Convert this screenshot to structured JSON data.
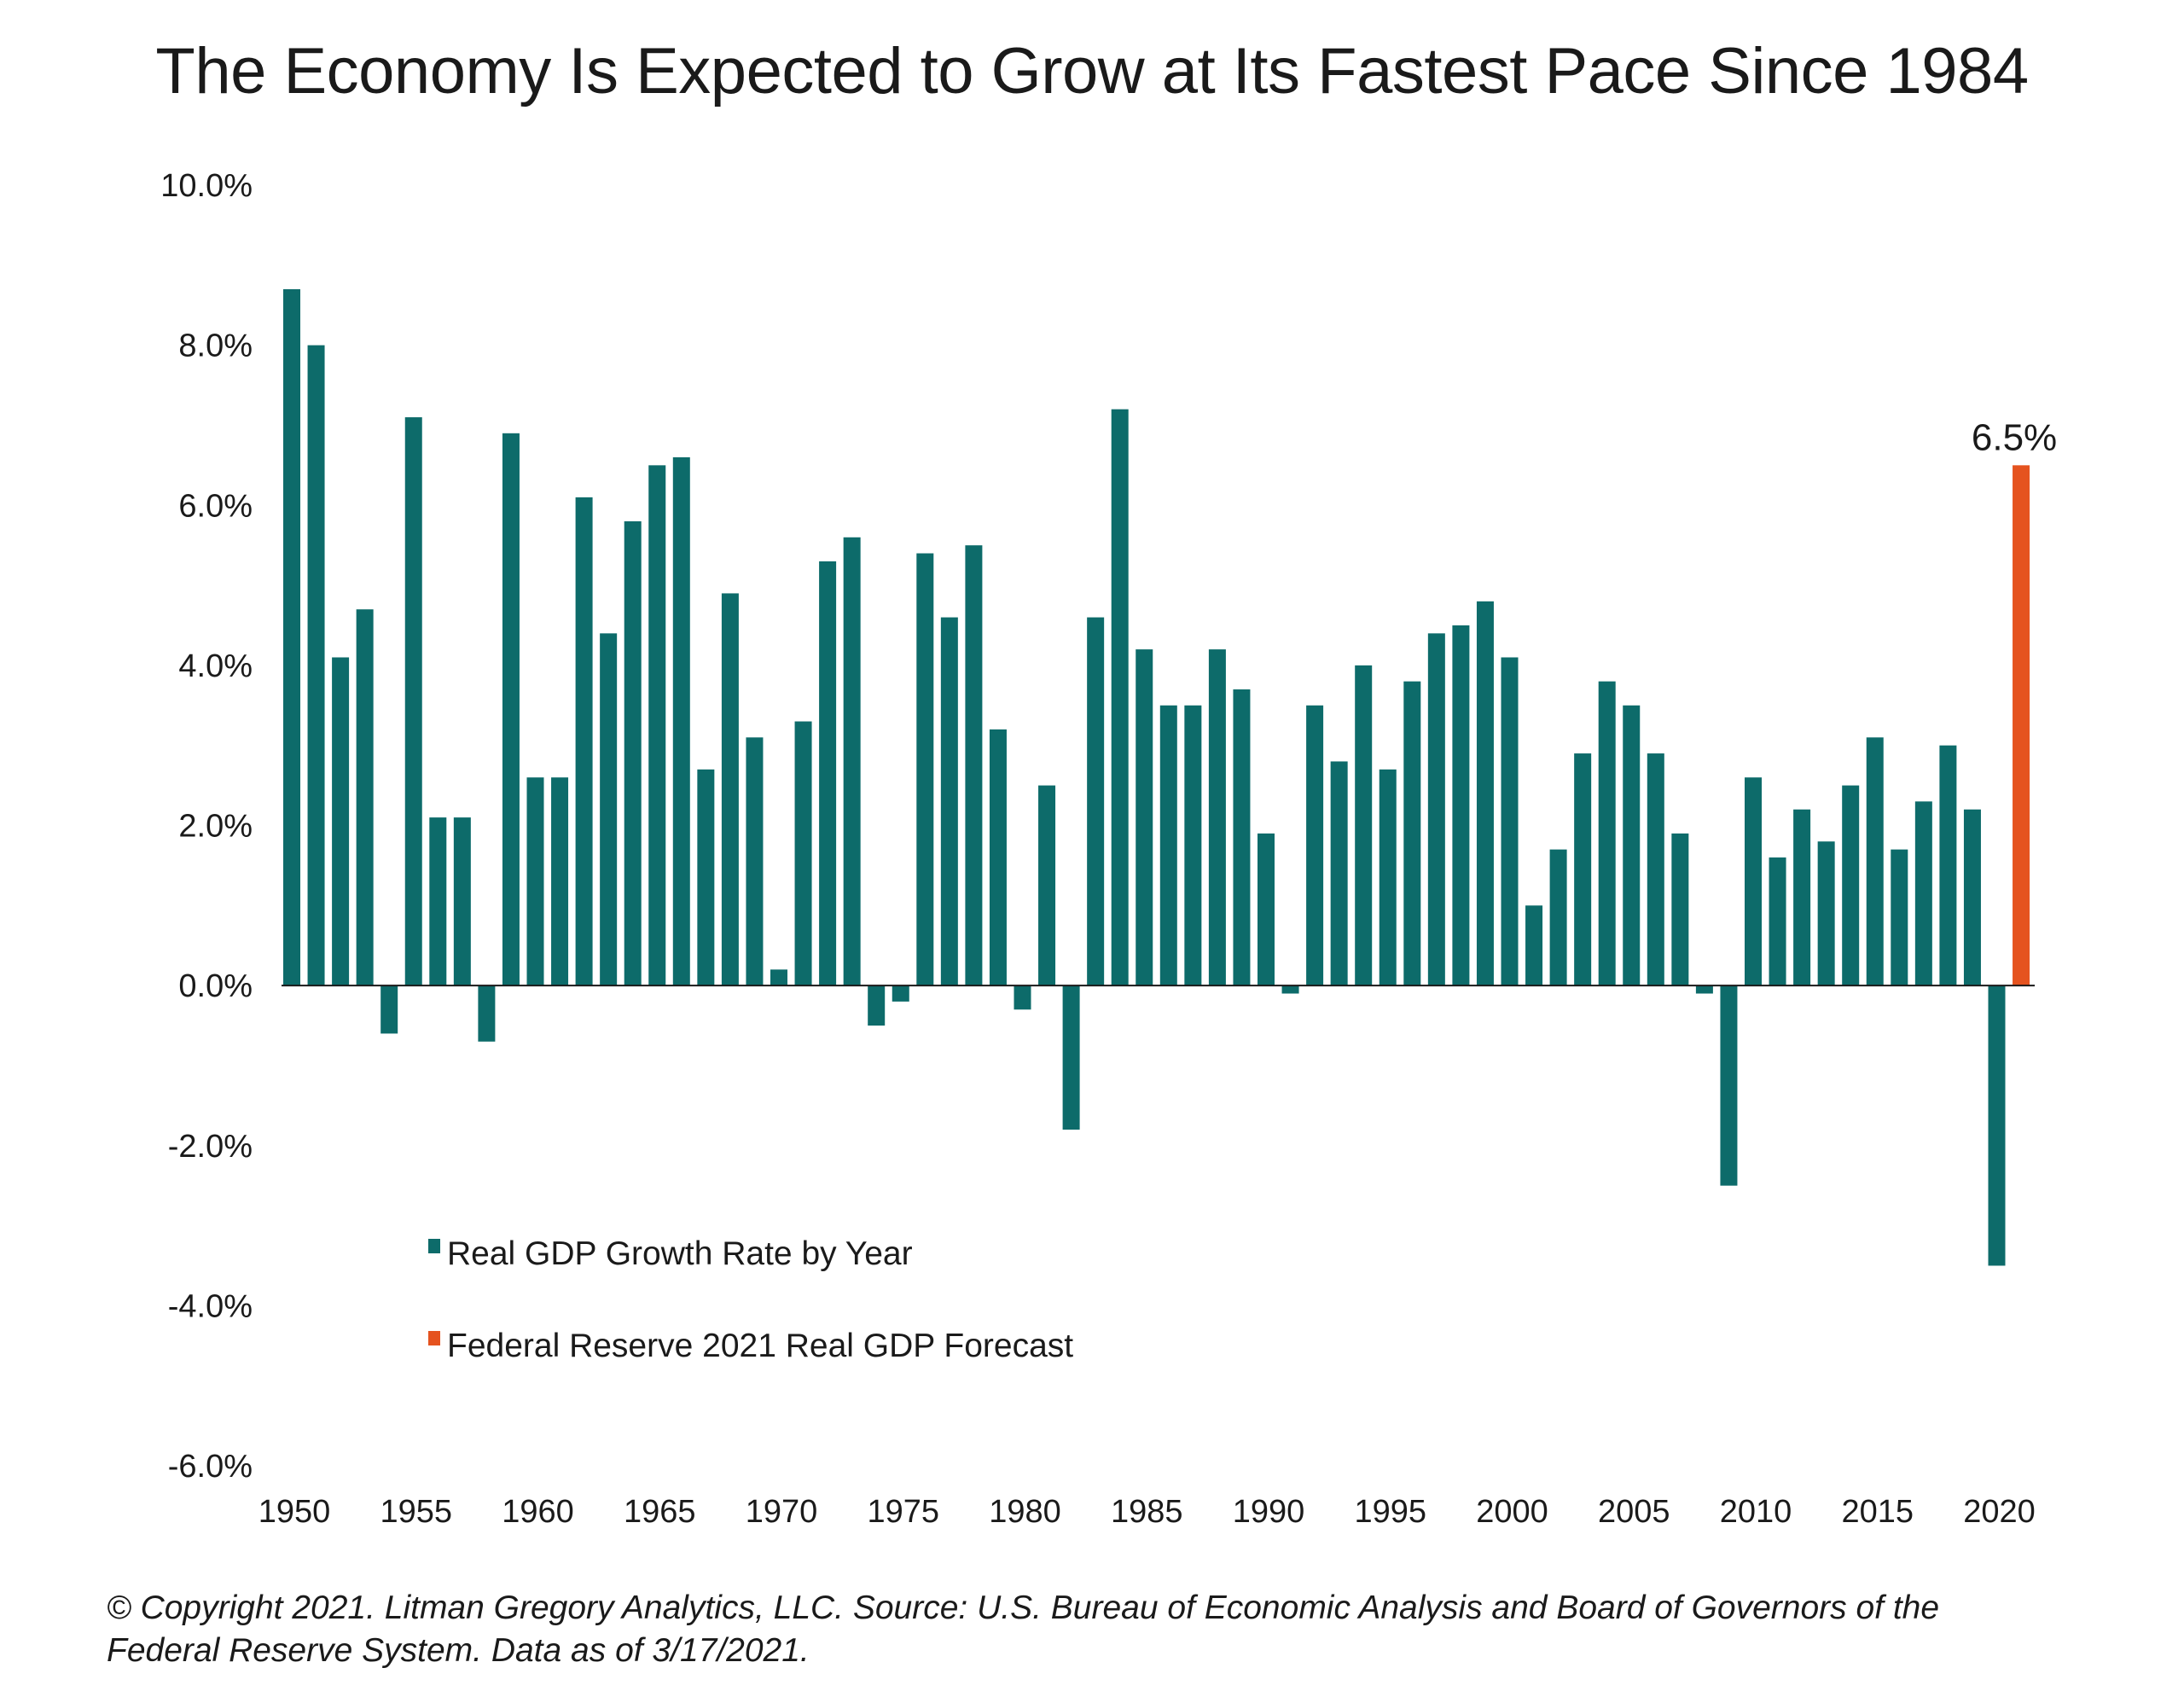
{
  "chart_data": {
    "type": "bar",
    "title": "The Economy Is Expected to Grow at Its Fastest Pace Since 1984",
    "xlabel": "",
    "ylabel": "",
    "ylim": [
      -6,
      10
    ],
    "y_ticks": [
      "10.0%",
      "8.0%",
      "6.0%",
      "4.0%",
      "2.0%",
      "0.0%",
      "-2.0%",
      "-4.0%",
      "-6.0%"
    ],
    "y_tick_values": [
      10,
      8,
      6,
      4,
      2,
      0,
      -2,
      -4,
      -6
    ],
    "x_tick_labels": [
      "1950",
      "1955",
      "1960",
      "1965",
      "1970",
      "1975",
      "1980",
      "1985",
      "1990",
      "1995",
      "2000",
      "2005",
      "2010",
      "2015",
      "2020"
    ],
    "x_range": [
      1950,
      2021
    ],
    "grid": false,
    "legend_position": "bottom-left",
    "series": [
      {
        "name": "Real GDP Growth Rate by Year",
        "color": "#0d6b6a",
        "x": [
          1950,
          1951,
          1952,
          1953,
          1954,
          1955,
          1956,
          1957,
          1958,
          1959,
          1960,
          1961,
          1962,
          1963,
          1964,
          1965,
          1966,
          1967,
          1968,
          1969,
          1970,
          1971,
          1972,
          1973,
          1974,
          1975,
          1976,
          1977,
          1978,
          1979,
          1980,
          1981,
          1982,
          1983,
          1984,
          1985,
          1986,
          1987,
          1988,
          1989,
          1990,
          1991,
          1992,
          1993,
          1994,
          1995,
          1996,
          1997,
          1998,
          1999,
          2000,
          2001,
          2002,
          2003,
          2004,
          2005,
          2006,
          2007,
          2008,
          2009,
          2010,
          2011,
          2012,
          2013,
          2014,
          2015,
          2016,
          2017,
          2018,
          2019,
          2020
        ],
        "values": [
          8.7,
          8.0,
          4.1,
          4.7,
          -0.6,
          7.1,
          2.1,
          2.1,
          -0.7,
          6.9,
          2.6,
          2.6,
          6.1,
          4.4,
          5.8,
          6.5,
          6.6,
          2.7,
          4.9,
          3.1,
          0.2,
          3.3,
          5.3,
          5.6,
          -0.5,
          -0.2,
          5.4,
          4.6,
          5.5,
          3.2,
          -0.3,
          2.5,
          -1.8,
          4.6,
          7.2,
          4.2,
          3.5,
          3.5,
          4.2,
          3.7,
          1.9,
          -0.1,
          3.5,
          2.8,
          4.0,
          2.7,
          3.8,
          4.4,
          4.5,
          4.8,
          4.1,
          1.0,
          1.7,
          2.9,
          3.8,
          3.5,
          2.9,
          1.9,
          -0.1,
          -2.5,
          2.6,
          1.6,
          2.2,
          1.8,
          2.5,
          3.1,
          1.7,
          2.3,
          3.0,
          2.2,
          -3.5
        ]
      },
      {
        "name": "Federal Reserve 2021 Real GDP Forecast",
        "color": "#e5531f",
        "x": [
          2021
        ],
        "values": [
          6.5
        ]
      }
    ],
    "annotations": [
      {
        "text": "6.5%",
        "x": 2021,
        "y": 6.5
      }
    ]
  },
  "footer": {
    "line1": "© Copyright 2021. Litman Gregory Analytics, LLC. Source: U.S. Bureau of Economic Analysis and Board of Governors of the",
    "line2": "Federal Reserve System. Data as of 3/17/2021."
  }
}
